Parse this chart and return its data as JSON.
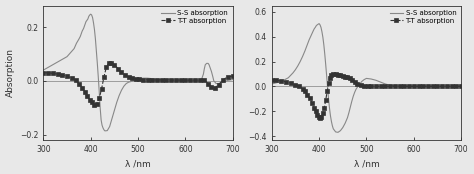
{
  "xlim": [
    300,
    700
  ],
  "xlabel": "λ /nm",
  "ylabel": "Absorption",
  "xticks": [
    300,
    400,
    500,
    600,
    700
  ],
  "panel1": {
    "ylim": [
      -0.22,
      0.28
    ],
    "yticks": [
      -0.2,
      0.0,
      0.2
    ],
    "ss_x": [
      300,
      305,
      310,
      315,
      320,
      325,
      330,
      335,
      340,
      345,
      350,
      355,
      360,
      365,
      370,
      375,
      378,
      380,
      382,
      385,
      388,
      390,
      392,
      394,
      396,
      398,
      400,
      402,
      404,
      406,
      408,
      410,
      412,
      414,
      416,
      418,
      420,
      422,
      424,
      426,
      428,
      430,
      435,
      440,
      445,
      450,
      455,
      460,
      465,
      470,
      475,
      480,
      490,
      500,
      510,
      520,
      530,
      540,
      550,
      560,
      570,
      580,
      590,
      600,
      610,
      620,
      630,
      635,
      638,
      640,
      642,
      645,
      648,
      650,
      652,
      655,
      658,
      660,
      665,
      670,
      680,
      690,
      700
    ],
    "ss_y": [
      0.04,
      0.045,
      0.05,
      0.055,
      0.06,
      0.065,
      0.07,
      0.075,
      0.08,
      0.085,
      0.09,
      0.1,
      0.11,
      0.12,
      0.14,
      0.155,
      0.165,
      0.175,
      0.185,
      0.195,
      0.21,
      0.22,
      0.225,
      0.23,
      0.24,
      0.245,
      0.248,
      0.245,
      0.235,
      0.215,
      0.19,
      0.155,
      0.11,
      0.065,
      0.015,
      -0.04,
      -0.1,
      -0.145,
      -0.165,
      -0.175,
      -0.182,
      -0.186,
      -0.185,
      -0.17,
      -0.14,
      -0.11,
      -0.08,
      -0.055,
      -0.035,
      -0.02,
      -0.01,
      -0.005,
      0.0,
      0.005,
      0.01,
      0.01,
      0.008,
      0.005,
      0.005,
      0.005,
      0.003,
      0.003,
      0.002,
      0.002,
      0.002,
      0.002,
      0.002,
      0.01,
      0.025,
      0.045,
      0.06,
      0.065,
      0.065,
      0.06,
      0.05,
      0.035,
      0.015,
      0.0,
      -0.01,
      -0.01,
      -0.005,
      0.002,
      0.005
    ],
    "tt_x": [
      300,
      310,
      320,
      330,
      340,
      350,
      360,
      368,
      375,
      382,
      388,
      393,
      398,
      403,
      408,
      413,
      418,
      423,
      428,
      433,
      438,
      443,
      450,
      458,
      465,
      473,
      480,
      488,
      495,
      503,
      510,
      520,
      530,
      540,
      550,
      560,
      570,
      580,
      590,
      600,
      610,
      620,
      630,
      640,
      648,
      655,
      663,
      670,
      680,
      690,
      700
    ],
    "tt_y": [
      0.03,
      0.03,
      0.028,
      0.025,
      0.022,
      0.018,
      0.01,
      0.002,
      -0.01,
      -0.025,
      -0.04,
      -0.055,
      -0.07,
      -0.08,
      -0.09,
      -0.085,
      -0.065,
      -0.03,
      0.015,
      0.05,
      0.065,
      0.068,
      0.06,
      0.045,
      0.032,
      0.022,
      0.015,
      0.01,
      0.008,
      0.006,
      0.005,
      0.004,
      0.003,
      0.003,
      0.003,
      0.003,
      0.003,
      0.003,
      0.003,
      0.003,
      0.003,
      0.003,
      0.003,
      0.003,
      -0.01,
      -0.022,
      -0.025,
      -0.015,
      0.005,
      0.015,
      0.018
    ]
  },
  "panel2": {
    "ylim": [
      -0.43,
      0.65
    ],
    "yticks": [
      -0.4,
      -0.2,
      0.0,
      0.2,
      0.4,
      0.6
    ],
    "ss_x": [
      300,
      305,
      310,
      315,
      320,
      325,
      330,
      335,
      340,
      345,
      350,
      355,
      360,
      365,
      370,
      373,
      376,
      379,
      382,
      385,
      388,
      390,
      392,
      394,
      396,
      398,
      400,
      402,
      404,
      406,
      408,
      410,
      412,
      414,
      416,
      418,
      420,
      422,
      424,
      426,
      428,
      430,
      435,
      440,
      445,
      450,
      455,
      460,
      463,
      466,
      469,
      472,
      475,
      478,
      481,
      484,
      487,
      490,
      495,
      500,
      510,
      520,
      530,
      540,
      550,
      560,
      570,
      580,
      590,
      600,
      610,
      620,
      630,
      640,
      650,
      660,
      670,
      680,
      690,
      700
    ],
    "ss_y": [
      0.02,
      0.025,
      0.03,
      0.035,
      0.04,
      0.05,
      0.06,
      0.07,
      0.09,
      0.11,
      0.135,
      0.165,
      0.2,
      0.24,
      0.285,
      0.315,
      0.345,
      0.375,
      0.4,
      0.425,
      0.45,
      0.465,
      0.475,
      0.488,
      0.495,
      0.5,
      0.505,
      0.495,
      0.475,
      0.44,
      0.395,
      0.335,
      0.26,
      0.175,
      0.085,
      -0.01,
      -0.1,
      -0.175,
      -0.235,
      -0.28,
      -0.315,
      -0.34,
      -0.365,
      -0.368,
      -0.355,
      -0.33,
      -0.295,
      -0.25,
      -0.21,
      -0.165,
      -0.12,
      -0.08,
      -0.048,
      -0.022,
      -0.005,
      0.01,
      0.025,
      0.04,
      0.055,
      0.065,
      0.06,
      0.05,
      0.035,
      0.02,
      0.01,
      0.005,
      0.003,
      0.002,
      0.001,
      0.001,
      0.001,
      0.001,
      0.001,
      0.001,
      0.001,
      0.001,
      0.001,
      0.001,
      0.001,
      0.001
    ],
    "tt_x": [
      300,
      310,
      320,
      330,
      340,
      350,
      358,
      365,
      370,
      375,
      380,
      385,
      390,
      393,
      396,
      399,
      402,
      405,
      408,
      411,
      414,
      417,
      420,
      423,
      426,
      430,
      435,
      440,
      445,
      450,
      455,
      460,
      465,
      470,
      475,
      480,
      488,
      495,
      503,
      510,
      520,
      530,
      540,
      550,
      560,
      570,
      580,
      590,
      600,
      610,
      620,
      630,
      640,
      650,
      660,
      670,
      680,
      690,
      700
    ],
    "tt_y": [
      0.05,
      0.05,
      0.045,
      0.038,
      0.028,
      0.015,
      0.002,
      -0.02,
      -0.04,
      -0.065,
      -0.095,
      -0.13,
      -0.17,
      -0.2,
      -0.225,
      -0.245,
      -0.255,
      -0.245,
      -0.215,
      -0.17,
      -0.11,
      -0.04,
      0.025,
      0.07,
      0.09,
      0.1,
      0.1,
      0.095,
      0.09,
      0.085,
      0.08,
      0.075,
      0.065,
      0.05,
      0.035,
      0.02,
      0.008,
      0.005,
      0.003,
      0.002,
      0.002,
      0.002,
      0.002,
      0.002,
      0.002,
      0.002,
      0.002,
      0.002,
      0.002,
      0.002,
      0.002,
      0.002,
      0.002,
      0.002,
      0.002,
      0.002,
      0.002,
      0.002,
      0.002
    ]
  },
  "legend_ss": "S-S absorption",
  "legend_tt": "T-T absorption",
  "line_color": "#888888",
  "bg_color": "#e8e8e8",
  "marker": "s",
  "markersize": 2.8,
  "linewidth_ss": 0.8,
  "linewidth_tt": 0.8
}
